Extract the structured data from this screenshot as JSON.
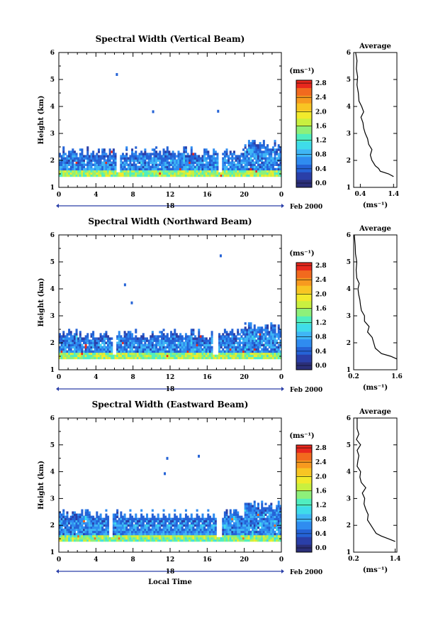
{
  "chart_data": [
    {
      "type": "heatmap",
      "title": "Spectral Width (Vertical Beam)",
      "ylabel": "Height (km)",
      "ylim": [
        1,
        6
      ],
      "yticks": [
        "1",
        "2",
        "3",
        "4",
        "5",
        "6"
      ],
      "xlim": [
        0,
        24
      ],
      "xticks": [
        "0",
        "4",
        "8",
        "12",
        "16",
        "20",
        "0"
      ],
      "date_day": "18",
      "date_label": "Feb 2000",
      "xlabel": "",
      "colorbar": {
        "unit": "(ms⁻¹)",
        "range": [
          0,
          3.0
        ],
        "ticks": [
          "0.0",
          "0.4",
          "0.8",
          "1.2",
          "1.6",
          "2.0",
          "2.4",
          "2.8"
        ]
      },
      "field": {
        "layer_top_km": 2.3,
        "bottom_km": 1.4,
        "typical_width": 0.7,
        "near_surface_width": 1.6,
        "max_width": 2.9,
        "gap_times_h": [
          6.4,
          17.4
        ]
      },
      "average_profile": {
        "title": "Average",
        "xlabel": "(ms⁻¹)",
        "xticks": [
          "0.4",
          "1.4"
        ],
        "xtick_values": [
          0.4,
          1.4
        ],
        "xlim": [
          0.2,
          1.5
        ],
        "ylim": [
          1,
          6
        ],
        "height_km": [
          1.4,
          1.5,
          1.6,
          1.7,
          1.8,
          1.9,
          2.0,
          2.2,
          2.4,
          2.6,
          2.8,
          3.0,
          3.2,
          3.4,
          3.6,
          3.8,
          4.0,
          4.2,
          4.5,
          4.8,
          5.1,
          5.4,
          5.7,
          6.0
        ],
        "width": [
          1.4,
          1.25,
          1.0,
          0.95,
          0.85,
          0.8,
          0.75,
          0.7,
          0.75,
          0.65,
          0.62,
          0.55,
          0.5,
          0.48,
          0.42,
          0.5,
          0.44,
          0.36,
          0.34,
          0.3,
          0.32,
          0.28,
          0.3,
          0.26
        ]
      }
    },
    {
      "type": "heatmap",
      "title": "Spectral Width (Northward Beam)",
      "ylabel": "Height (km)",
      "ylim": [
        1,
        6
      ],
      "yticks": [
        "1",
        "2",
        "3",
        "4",
        "5",
        "6"
      ],
      "xlim": [
        0,
        24
      ],
      "xticks": [
        "0",
        "4",
        "8",
        "12",
        "16",
        "20",
        "0"
      ],
      "date_day": "18",
      "date_label": "Feb 2000",
      "xlabel": "",
      "colorbar": {
        "unit": "(ms⁻¹)",
        "range": [
          0,
          3.0
        ],
        "ticks": [
          "0.0",
          "0.4",
          "0.8",
          "1.2",
          "1.6",
          "2.0",
          "2.4",
          "2.8"
        ]
      },
      "field": {
        "layer_top_km": 2.3,
        "bottom_km": 1.4,
        "typical_width": 0.7,
        "near_surface_width": 1.6,
        "max_width": 2.8,
        "gap_times_h": [
          6.0,
          16.9
        ]
      },
      "average_profile": {
        "title": "Average",
        "xlabel": "(ms⁻¹)",
        "xticks": [
          "0.2",
          "1.6"
        ],
        "xtick_values": [
          0.2,
          1.6
        ],
        "xlim": [
          0.2,
          1.6
        ],
        "ylim": [
          1,
          6
        ],
        "height_km": [
          1.4,
          1.5,
          1.6,
          1.7,
          1.8,
          2.0,
          2.2,
          2.4,
          2.6,
          2.8,
          3.0,
          3.2,
          3.4,
          3.6,
          3.8,
          4.0,
          4.2,
          4.4,
          4.7,
          5.0,
          5.3,
          5.6,
          6.0
        ],
        "width": [
          1.6,
          1.4,
          1.1,
          1.0,
          0.9,
          0.85,
          0.8,
          0.65,
          0.7,
          0.55,
          0.55,
          0.45,
          0.42,
          0.4,
          0.36,
          0.34,
          0.38,
          0.3,
          0.28,
          0.3,
          0.26,
          0.25,
          0.22
        ]
      }
    },
    {
      "type": "heatmap",
      "title": "Spectral Width (Eastward Beam)",
      "ylabel": "Height (km)",
      "ylim": [
        1,
        6
      ],
      "yticks": [
        "1",
        "2",
        "3",
        "4",
        "5",
        "6"
      ],
      "xlim": [
        0,
        24
      ],
      "xticks": [
        "0",
        "4",
        "8",
        "12",
        "16",
        "20",
        "0"
      ],
      "date_day": "18",
      "date_label": "Feb 2000",
      "xlabel": "Local Time",
      "colorbar": {
        "unit": "(ms⁻¹)",
        "range": [
          0,
          3.0
        ],
        "ticks": [
          "0.0",
          "0.4",
          "0.8",
          "1.2",
          "1.6",
          "2.0",
          "2.4",
          "2.8"
        ]
      },
      "field": {
        "layer_top_km": 2.4,
        "bottom_km": 1.4,
        "typical_width": 0.7,
        "near_surface_width": 1.5,
        "max_width": 2.7,
        "gap_times_h": [
          5.6,
          17.3
        ]
      },
      "average_profile": {
        "title": "Average",
        "xlabel": "(ms⁻¹)",
        "xticks": [
          "0.2",
          "1.4"
        ],
        "xtick_values": [
          0.2,
          1.4
        ],
        "xlim": [
          0.2,
          1.45
        ],
        "ylim": [
          1,
          6
        ],
        "height_km": [
          1.4,
          1.5,
          1.6,
          1.7,
          1.8,
          2.0,
          2.2,
          2.4,
          2.6,
          2.8,
          3.0,
          3.2,
          3.4,
          3.6,
          3.8,
          4.0,
          4.2,
          4.4,
          4.6,
          4.8,
          5.0,
          5.2,
          5.4,
          5.6,
          6.0
        ],
        "width": [
          1.4,
          1.2,
          1.0,
          0.85,
          0.8,
          0.7,
          0.6,
          0.62,
          0.55,
          0.5,
          0.52,
          0.45,
          0.55,
          0.42,
          0.38,
          0.4,
          0.3,
          0.32,
          0.35,
          0.3,
          0.4,
          0.28,
          0.35,
          0.3,
          0.3
        ]
      }
    }
  ],
  "colors": {
    "scale": [
      "#2b2f78",
      "#2a3fa8",
      "#2563d6",
      "#2f8cf0",
      "#3fb6f5",
      "#3fdcea",
      "#50eec0",
      "#8ef07a",
      "#c9f040",
      "#f2ea2c",
      "#f8c523",
      "#f79a1f",
      "#f26a1e",
      "#e8281e"
    ],
    "axis": "#000000",
    "date_bar": "#2a3fa8"
  }
}
